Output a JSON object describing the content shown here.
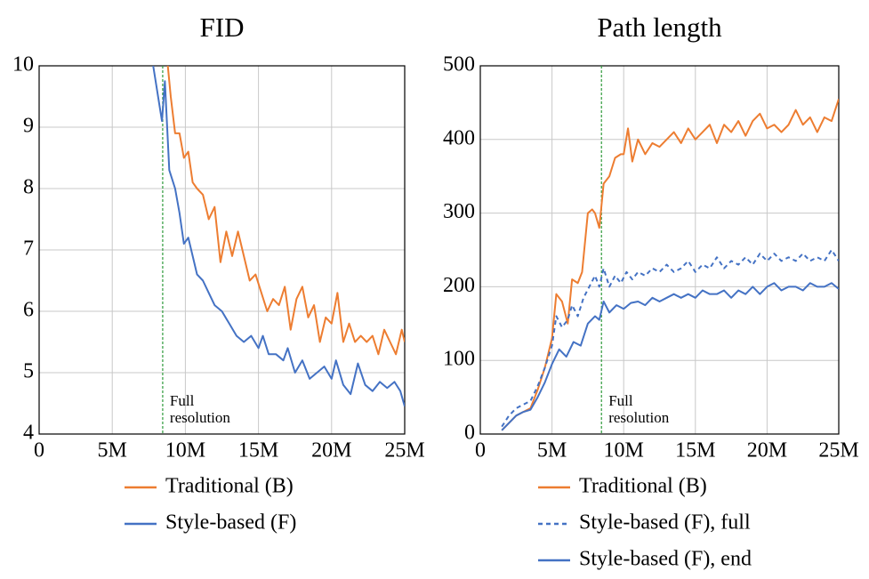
{
  "chart_data": [
    {
      "type": "line",
      "title": "FID",
      "xlim": [
        0,
        25
      ],
      "xticks": [
        0,
        {
          "value": 5,
          "label": "5M"
        },
        {
          "value": 10,
          "label": "10M"
        },
        {
          "value": 15,
          "label": "15M"
        },
        {
          "value": 20,
          "label": "20M"
        },
        {
          "value": 25,
          "label": "25M"
        }
      ],
      "ylim": [
        4,
        10
      ],
      "yticks": [
        4,
        5,
        6,
        7,
        8,
        9,
        10
      ],
      "grid": true,
      "annotation": {
        "lines": [
          "Full",
          "resolution"
        ],
        "x": 8.45,
        "color": "#2e9a3a"
      },
      "series": [
        {
          "name": "Traditional (B)",
          "color": "#ed7d31",
          "dash": false,
          "x": [
            8.8,
            9.0,
            9.3,
            9.6,
            9.9,
            10.2,
            10.5,
            10.8,
            11.2,
            11.6,
            12.0,
            12.4,
            12.8,
            13.2,
            13.6,
            14.0,
            14.4,
            14.8,
            15.2,
            15.6,
            16.0,
            16.4,
            16.8,
            17.2,
            17.6,
            18.0,
            18.4,
            18.8,
            19.2,
            19.6,
            20.0,
            20.4,
            20.8,
            21.2,
            21.6,
            22.0,
            22.4,
            22.8,
            23.2,
            23.6,
            24.0,
            24.4,
            24.8,
            25.0
          ],
          "values": [
            10.0,
            9.5,
            8.9,
            8.9,
            8.5,
            8.6,
            8.1,
            8.0,
            7.9,
            7.5,
            7.7,
            6.8,
            7.3,
            6.9,
            7.3,
            6.9,
            6.5,
            6.6,
            6.3,
            6.0,
            6.2,
            6.1,
            6.4,
            5.7,
            6.2,
            6.4,
            5.9,
            6.1,
            5.5,
            5.9,
            5.8,
            6.3,
            5.5,
            5.8,
            5.5,
            5.6,
            5.5,
            5.6,
            5.3,
            5.7,
            5.5,
            5.3,
            5.7,
            5.5
          ]
        },
        {
          "name": "Style-based (F)",
          "color": "#4472c4",
          "dash": false,
          "x": [
            7.8,
            8.4,
            8.6,
            8.9,
            9.3,
            9.6,
            9.9,
            10.2,
            10.5,
            10.8,
            11.2,
            11.6,
            12.0,
            12.5,
            13.0,
            13.5,
            14.0,
            14.5,
            15.0,
            15.3,
            15.7,
            16.2,
            16.7,
            17.0,
            17.5,
            18.0,
            18.5,
            19.0,
            19.5,
            20.0,
            20.3,
            20.8,
            21.3,
            21.8,
            22.3,
            22.8,
            23.3,
            23.8,
            24.3,
            24.7,
            25.0
          ],
          "values": [
            10.0,
            9.1,
            9.75,
            8.3,
            8.0,
            7.6,
            7.1,
            7.2,
            6.9,
            6.6,
            6.5,
            6.3,
            6.1,
            6.0,
            5.8,
            5.6,
            5.5,
            5.6,
            5.4,
            5.6,
            5.3,
            5.3,
            5.2,
            5.4,
            5.0,
            5.2,
            4.9,
            5.0,
            5.1,
            4.9,
            5.2,
            4.8,
            4.65,
            5.15,
            4.8,
            4.7,
            4.85,
            4.75,
            4.85,
            4.7,
            4.45
          ]
        }
      ]
    },
    {
      "type": "line",
      "title": "Path length",
      "xlim": [
        0,
        25
      ],
      "xticks": [
        0,
        {
          "value": 5,
          "label": "5M"
        },
        {
          "value": 10,
          "label": "10M"
        },
        {
          "value": 15,
          "label": "15M"
        },
        {
          "value": 20,
          "label": "20M"
        },
        {
          "value": 25,
          "label": "25M"
        }
      ],
      "ylim": [
        0,
        500
      ],
      "yticks": [
        0,
        100,
        200,
        300,
        400,
        500
      ],
      "grid": true,
      "annotation": {
        "lines": [
          "Full",
          "resolution"
        ],
        "x": 8.45,
        "color": "#2e9a3a"
      },
      "series": [
        {
          "name": "Traditional (B)",
          "color": "#ed7d31",
          "dash": false,
          "x": [
            1.5,
            2,
            2.5,
            3,
            3.5,
            4,
            4.5,
            5,
            5.3,
            5.7,
            6.1,
            6.4,
            6.8,
            7.1,
            7.5,
            7.8,
            8.0,
            8.3,
            8.6,
            9.0,
            9.4,
            9.8,
            10.0,
            10.3,
            10.6,
            11,
            11.5,
            12,
            12.5,
            13,
            13.5,
            14,
            14.5,
            15,
            15.5,
            16,
            16.5,
            17,
            17.5,
            18,
            18.5,
            19,
            19.5,
            20,
            20.5,
            21,
            21.5,
            22,
            22.5,
            23,
            23.5,
            24,
            24.5,
            25
          ],
          "values": [
            5,
            15,
            25,
            30,
            35,
            60,
            90,
            130,
            190,
            180,
            150,
            210,
            205,
            220,
            300,
            305,
            300,
            280,
            340,
            350,
            375,
            380,
            380,
            415,
            370,
            400,
            380,
            395,
            390,
            400,
            410,
            395,
            415,
            400,
            410,
            420,
            395,
            420,
            410,
            425,
            405,
            425,
            435,
            415,
            420,
            410,
            420,
            440,
            420,
            430,
            410,
            430,
            425,
            455
          ]
        },
        {
          "name": "Style-based (F), full",
          "color": "#4472c4",
          "dash": true,
          "x": [
            1.5,
            2,
            2.5,
            3,
            3.5,
            4,
            4.5,
            5,
            5.3,
            5.7,
            6.1,
            6.4,
            6.8,
            7.2,
            7.6,
            8.0,
            8.3,
            8.6,
            9.0,
            9.4,
            9.8,
            10.2,
            10.6,
            11,
            11.5,
            12,
            12.5,
            13,
            13.5,
            14,
            14.5,
            15,
            15.5,
            16,
            16.5,
            17,
            17.5,
            18,
            18.5,
            19,
            19.5,
            20,
            20.5,
            21,
            21.5,
            22,
            22.5,
            23,
            23.5,
            24,
            24.5,
            25
          ],
          "values": [
            10,
            25,
            35,
            40,
            45,
            65,
            90,
            120,
            160,
            145,
            155,
            175,
            160,
            185,
            200,
            215,
            200,
            225,
            200,
            215,
            205,
            220,
            210,
            220,
            215,
            225,
            220,
            230,
            220,
            225,
            235,
            220,
            230,
            225,
            240,
            225,
            235,
            230,
            240,
            230,
            245,
            235,
            245,
            235,
            240,
            235,
            245,
            235,
            240,
            235,
            250,
            235
          ]
        },
        {
          "name": "Style-based (F), end",
          "color": "#4472c4",
          "dash": false,
          "x": [
            1.5,
            2,
            2.5,
            3,
            3.5,
            4,
            4.5,
            5,
            5.5,
            6,
            6.5,
            7,
            7.5,
            8.0,
            8.3,
            8.6,
            9.0,
            9.5,
            10,
            10.5,
            11,
            11.5,
            12,
            12.5,
            13,
            13.5,
            14,
            14.5,
            15,
            15.5,
            16,
            16.5,
            17,
            17.5,
            18,
            18.5,
            19,
            19.5,
            20,
            20.5,
            21,
            21.5,
            22,
            22.5,
            23,
            23.5,
            24,
            24.5,
            25
          ],
          "values": [
            5,
            15,
            25,
            30,
            33,
            50,
            70,
            95,
            115,
            105,
            125,
            120,
            150,
            160,
            155,
            180,
            165,
            175,
            170,
            178,
            180,
            175,
            185,
            180,
            185,
            190,
            185,
            190,
            185,
            195,
            190,
            190,
            195,
            185,
            195,
            190,
            200,
            190,
            200,
            205,
            195,
            200,
            200,
            195,
            205,
            200,
            200,
            205,
            197
          ]
        }
      ]
    }
  ]
}
